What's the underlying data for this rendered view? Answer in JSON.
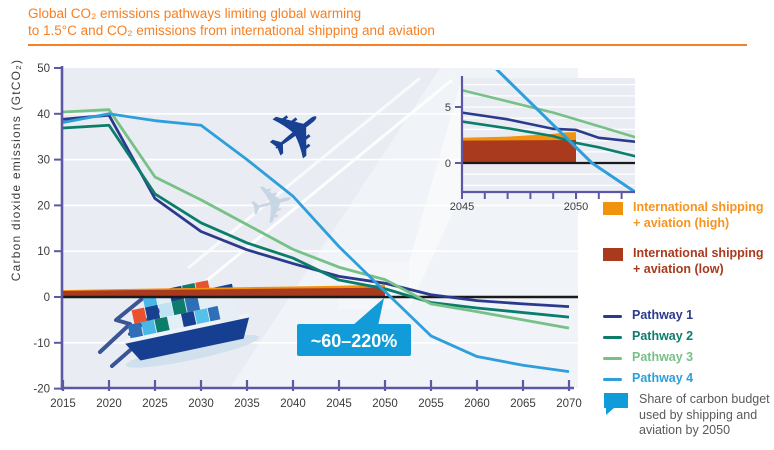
{
  "title": {
    "line1": "Global CO₂ emissions pathways limiting global warming",
    "line2": "to 1.5°C and CO₂ emissions from international shipping and aviation"
  },
  "colors": {
    "title_orange": "#f58025",
    "plot_bg": "#e9edf3",
    "axis": "#5c58a6",
    "zero_line": "#1a1a1a",
    "grid": "#ffffff",
    "bubble": "#119bd8",
    "tick_text": "#3c3c3c"
  },
  "chart_data": {
    "type": "line",
    "title": "Global CO₂ emissions pathways limiting global warming to 1.5°C and CO₂ emissions from international shipping and aviation",
    "ylabel": "Carbon dioxide emissions  (GtCO₂)",
    "xlabel": "",
    "xlim": [
      2015,
      2070
    ],
    "ylim": [
      -20,
      50
    ],
    "x_ticks": [
      2015,
      2020,
      2025,
      2030,
      2035,
      2040,
      2045,
      2050,
      2055,
      2060,
      2065,
      2070
    ],
    "y_ticks": [
      50,
      40,
      30,
      20,
      10,
      0,
      -10,
      -20
    ],
    "grid": "horizontal-white",
    "legend_position": "right",
    "years": [
      2015,
      2020,
      2025,
      2030,
      2035,
      2040,
      2045,
      2050,
      2055,
      2060,
      2065,
      2070
    ],
    "series": [
      {
        "name": "Pathway 1",
        "color": "#2b3a8d",
        "values": [
          38.8,
          39.7,
          21.5,
          14.3,
          10.3,
          7.3,
          4.5,
          3.0,
          0.5,
          -0.8,
          -1.5,
          -2.1
        ]
      },
      {
        "name": "Pathway 2",
        "color": "#0c7d6b",
        "values": [
          36.9,
          37.5,
          22.5,
          16.2,
          11.8,
          8.5,
          3.7,
          1.8,
          -1.2,
          -2.4,
          -3.4,
          -4.4
        ]
      },
      {
        "name": "Pathway 3",
        "color": "#77c187",
        "values": [
          40.4,
          40.9,
          26.2,
          21.2,
          15.8,
          10.4,
          6.5,
          3.8,
          -1.5,
          -3.2,
          -5.0,
          -6.8
        ]
      },
      {
        "name": "Pathway 4",
        "color": "#2e9fda",
        "values": [
          38.1,
          40.0,
          38.5,
          37.5,
          30.0,
          22.0,
          11.0,
          1.2,
          -8.5,
          -13.0,
          -14.9,
          -16.3
        ]
      }
    ],
    "areas": [
      {
        "name": "International shipping + aviation (high)",
        "color": "#f2930f",
        "x": [
          2015,
          2020,
          2025,
          2030,
          2035,
          2040,
          2045,
          2050
        ],
        "top": [
          1.5,
          1.7,
          1.85,
          2.0,
          2.15,
          2.3,
          2.45,
          2.7
        ]
      },
      {
        "name": "International shipping + aviation (low)",
        "color": "#a93a1e",
        "x": [
          2015,
          2020,
          2025,
          2030,
          2035,
          2040,
          2045,
          2050
        ],
        "top": [
          1.3,
          1.45,
          1.55,
          1.65,
          1.75,
          1.85,
          1.95,
          2.05
        ]
      }
    ],
    "annotation": {
      "label": "~60–220%",
      "points_to": "zero crossing at 2050"
    },
    "inset": {
      "xlim": [
        2045,
        2052.6
      ],
      "ylim": [
        -2.6,
        7.6
      ],
      "x_tick_labels": [
        2045,
        2050
      ],
      "y_tick_labels": [
        0,
        5
      ],
      "series": [
        {
          "name": "Pathway 1",
          "color": "#2b3a8d",
          "points": [
            [
              2045,
              4.5
            ],
            [
              2047,
              3.9
            ],
            [
              2049,
              3.05
            ],
            [
              2050,
              2.95
            ],
            [
              2051,
              2.25
            ],
            [
              2052.6,
              1.9
            ]
          ]
        },
        {
          "name": "Pathway 2",
          "color": "#0c7d6b",
          "points": [
            [
              2045,
              3.7
            ],
            [
              2047,
              3.1
            ],
            [
              2049,
              2.4
            ],
            [
              2050,
              1.8
            ],
            [
              2051,
              1.4
            ],
            [
              2052.6,
              0.6
            ]
          ]
        },
        {
          "name": "Pathway 3",
          "color": "#77c187",
          "points": [
            [
              2045,
              6.5
            ],
            [
              2047,
              5.5
            ],
            [
              2049,
              4.5
            ],
            [
              2050,
              3.9
            ],
            [
              2052.6,
              2.3
            ]
          ]
        },
        {
          "name": "Pathway 4",
          "color": "#2e9fda",
          "points": [
            [
              2046.4,
              8.6
            ],
            [
              2050.7,
              0
            ],
            [
              2052.6,
              -2.6
            ]
          ]
        }
      ],
      "areas": [
        {
          "name": "International shipping + aviation (high)",
          "color": "#f2930f",
          "points": [
            [
              2045,
              2.25
            ],
            [
              2047,
              2.35
            ],
            [
              2049,
              2.6
            ],
            [
              2049.6,
              2.75
            ],
            [
              2050,
              2.75
            ]
          ]
        },
        {
          "name": "International shipping + aviation (low)",
          "color": "#a93a1e",
          "points": [
            [
              2045,
              2.0
            ],
            [
              2050,
              2.05
            ]
          ]
        }
      ]
    }
  },
  "legend": {
    "items": [
      {
        "id": "high",
        "label": "International shipping + aviation (high)",
        "color": "#f2930f",
        "text_color": "#f7941e"
      },
      {
        "id": "low",
        "label": "International shipping + aviation (low)",
        "color": "#a93a1e",
        "text_color": "#a93a1e"
      },
      {
        "id": "p1",
        "label": "Pathway 1",
        "color": "#2b3a8d",
        "text_color": "#2b3a8d"
      },
      {
        "id": "p2",
        "label": "Pathway 2",
        "color": "#0c7d6b",
        "text_color": "#0c7d6b"
      },
      {
        "id": "p3",
        "label": "Pathway 3",
        "color": "#77c187",
        "text_color": "#77c187"
      },
      {
        "id": "p4",
        "label": "Pathway 4",
        "color": "#2e9fda",
        "text_color": "#2e9fda"
      },
      {
        "id": "share",
        "label": "Share of carbon budget used by shipping and aviation by 2050",
        "color": "#119bd8",
        "text_color": "#58595b"
      }
    ]
  }
}
